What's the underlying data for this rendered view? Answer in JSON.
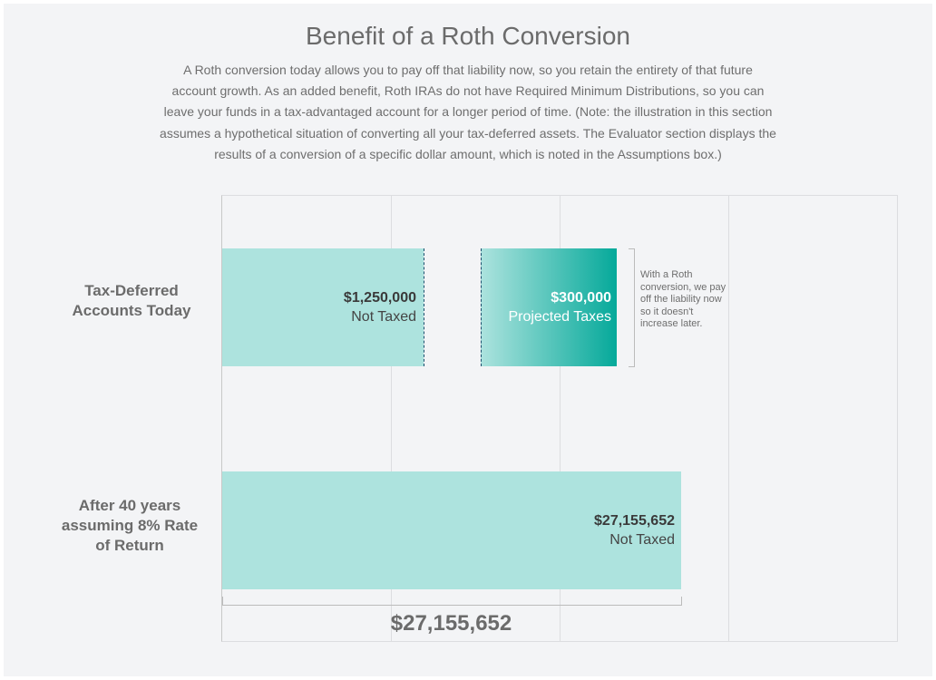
{
  "header": {
    "title": "Benefit of a Roth Conversion",
    "description": "A Roth conversion today allows you to pay off that liability now, so you retain the entirety of that future account growth. As an added benefit, Roth IRAs do not have Required Minimum Distributions, so you can leave your funds in a tax-advantaged account for a longer period of time. (Note: the illustration in this section assumes a hypothetical situation of converting all your tax-deferred assets. The Evaluator section displays the results of a conversion of a specific dollar amount, which is noted in the Assumptions box.)"
  },
  "chart_data": {
    "type": "bar",
    "orientation": "horizontal",
    "grid": true,
    "categories": [
      "Tax-Deferred Accounts Today",
      "After 40 years assuming 8% Rate of Return"
    ],
    "bars": [
      {
        "category": "Tax-Deferred Accounts Today",
        "value_label": "$1,250,000",
        "sub_label": "Not Taxed",
        "color": "#ade3de"
      },
      {
        "category": "Tax-Deferred Accounts Today",
        "value_label": "$300,000",
        "sub_label": "Projected Taxes",
        "color": "#05a99a",
        "gradient_from": "#ade3de"
      },
      {
        "category": "After 40 years assuming 8% Rate of Return",
        "value_label": "$27,155,652",
        "sub_label": "Not Taxed",
        "color": "#ade3de"
      }
    ],
    "annotation": "With a Roth conversion, we pay off the liability now so it doesn't increase later.",
    "total": "$27,155,652"
  }
}
